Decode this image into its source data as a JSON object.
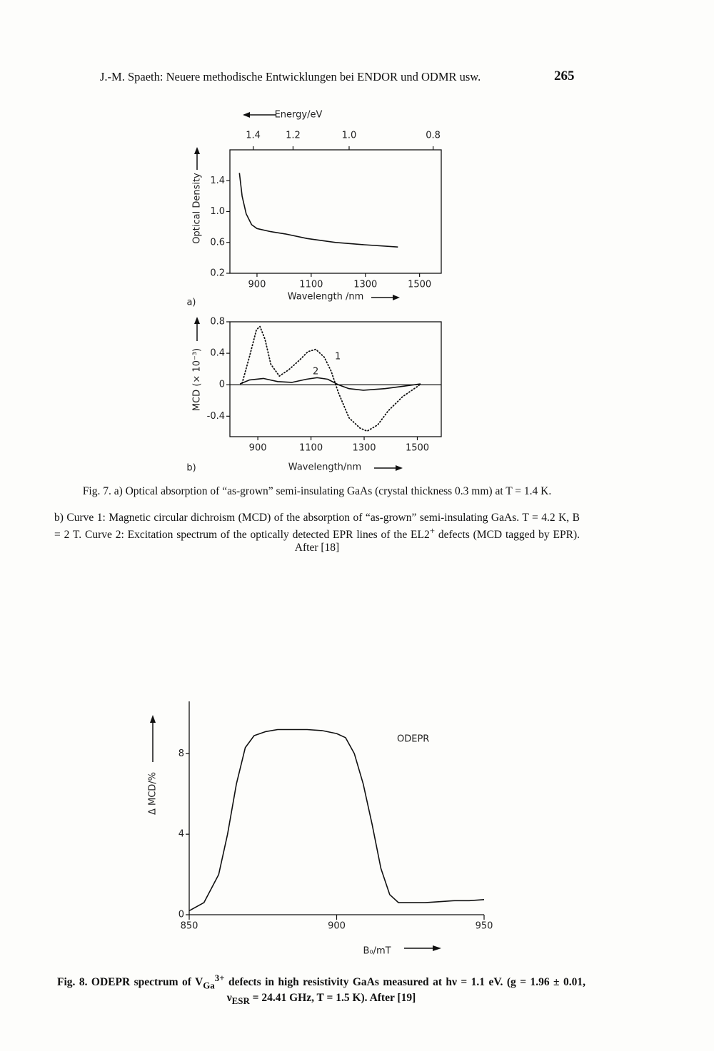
{
  "header": {
    "title": "J.-M. Spaeth: Neuere methodische Entwicklungen bei ENDOR und ODMR usw.",
    "page": "265"
  },
  "chart_data": [
    {
      "type": "line",
      "panel": "a)",
      "xlabel": "Wavelength /nm",
      "ylabel": "Optical Density",
      "x2label": "Energy/eV",
      "box": true,
      "xlim": [
        800,
        1580
      ],
      "ylim": [
        0.2,
        1.8
      ],
      "xticks": [
        900,
        1100,
        1300,
        1500
      ],
      "x2ticks": [
        {
          "value": 886,
          "label": "1.4"
        },
        {
          "value": 1033,
          "label": "1.2"
        },
        {
          "value": 1240,
          "label": "1.0"
        },
        {
          "value": 1550,
          "label": "0.8"
        }
      ],
      "yticks": [
        {
          "value": 0.2,
          "label": "0.2"
        },
        0.6,
        {
          "value": 1,
          "label": "1.0"
        },
        1.4
      ],
      "series": [
        {
          "color": "#111111",
          "style": "solid",
          "x": [
            835,
            845,
            860,
            880,
            900,
            950,
            1005,
            1085,
            1190,
            1295,
            1420
          ],
          "values": [
            1.5,
            1.2,
            0.97,
            0.83,
            0.78,
            0.74,
            0.71,
            0.65,
            0.6,
            0.57,
            0.54
          ]
        }
      ]
    },
    {
      "type": "line",
      "panel": "b)",
      "xlabel": "Wavelength/nm",
      "ylabel": "MCD (× 10⁻³)",
      "box": true,
      "xlim": [
        795,
        1590
      ],
      "ylim": [
        -0.66,
        0.8
      ],
      "xticks": [
        900,
        1100,
        1300,
        1500
      ],
      "yticks": [
        -0.4,
        0,
        0.4,
        0.8
      ],
      "series": [
        {
          "name": "1",
          "color": "#111111",
          "style": "dotted",
          "x": [
            841,
            868,
            895,
            908,
            927,
            949,
            981,
            1016,
            1056,
            1088,
            1118,
            1150,
            1176,
            1203,
            1243,
            1284,
            1311,
            1351,
            1391,
            1445,
            1506
          ],
          "values": [
            0.02,
            0.35,
            0.7,
            0.74,
            0.58,
            0.26,
            0.11,
            0.19,
            0.31,
            0.42,
            0.45,
            0.35,
            0.17,
            -0.1,
            -0.42,
            -0.55,
            -0.59,
            -0.51,
            -0.33,
            -0.15,
            -0.01
          ]
        },
        {
          "name": "2",
          "color": "#111111",
          "style": "solid",
          "x": [
            833,
            868,
            921,
            975,
            1029,
            1083,
            1123,
            1163,
            1203,
            1243,
            1297,
            1378,
            1445,
            1512
          ],
          "values": [
            0.01,
            0.06,
            0.08,
            0.04,
            0.03,
            0.07,
            0.09,
            0.07,
            0,
            -0.05,
            -0.07,
            -0.05,
            -0.02,
            0.01
          ]
        }
      ]
    },
    {
      "type": "line",
      "xlabel": "B₀/mT",
      "ylabel": "Δ MCD/%",
      "annotation": "ODEPR",
      "box": false,
      "xlim": [
        850,
        950
      ],
      "ylim": [
        0,
        10.6
      ],
      "xticks": [
        850,
        900,
        950
      ],
      "yticks": [
        0,
        4,
        8
      ],
      "series": [
        {
          "color": "#111111",
          "style": "solid",
          "x": [
            850,
            855,
            860,
            863,
            866,
            869,
            872,
            876,
            880,
            885,
            890,
            895,
            900,
            903,
            906,
            909,
            912,
            915,
            918,
            921,
            925,
            930,
            935,
            940,
            945,
            950
          ],
          "values": [
            0.2,
            0.6,
            2,
            4,
            6.5,
            8.3,
            8.9,
            9.1,
            9.2,
            9.2,
            9.2,
            9.15,
            9,
            8.8,
            8,
            6.5,
            4.5,
            2.3,
            1,
            0.6,
            0.6,
            0.6,
            0.65,
            0.7,
            0.7,
            0.75
          ]
        }
      ]
    }
  ],
  "captions": {
    "fig7a": "Fig. 7. a) Optical absorption of “as-grown” semi-insulating GaAs (crystal thickness 0.3 mm) at T = 1.4 K.",
    "fig7b": [
      "b) Curve 1: Magnetic circular dichroism (MCD) of the absorption of “as-grown” semi-insulating GaAs. T = 4.2 K, B = 2 T. Curve 2: Excitation spectrum of the optically detected EPR lines of the EL2",
      "+",
      " defects (MCD tagged by EPR). After [18]"
    ],
    "fig8": [
      "Fig. 8. ODEPR spectrum of V",
      "Ga",
      "3+",
      " defects in high resistivity GaAs measured at hν = 1.1 eV. (g = 1.96 ± 0.01, ν",
      "ESR",
      " = 24.41 GHz, T = 1.5 K). After [19]"
    ]
  }
}
